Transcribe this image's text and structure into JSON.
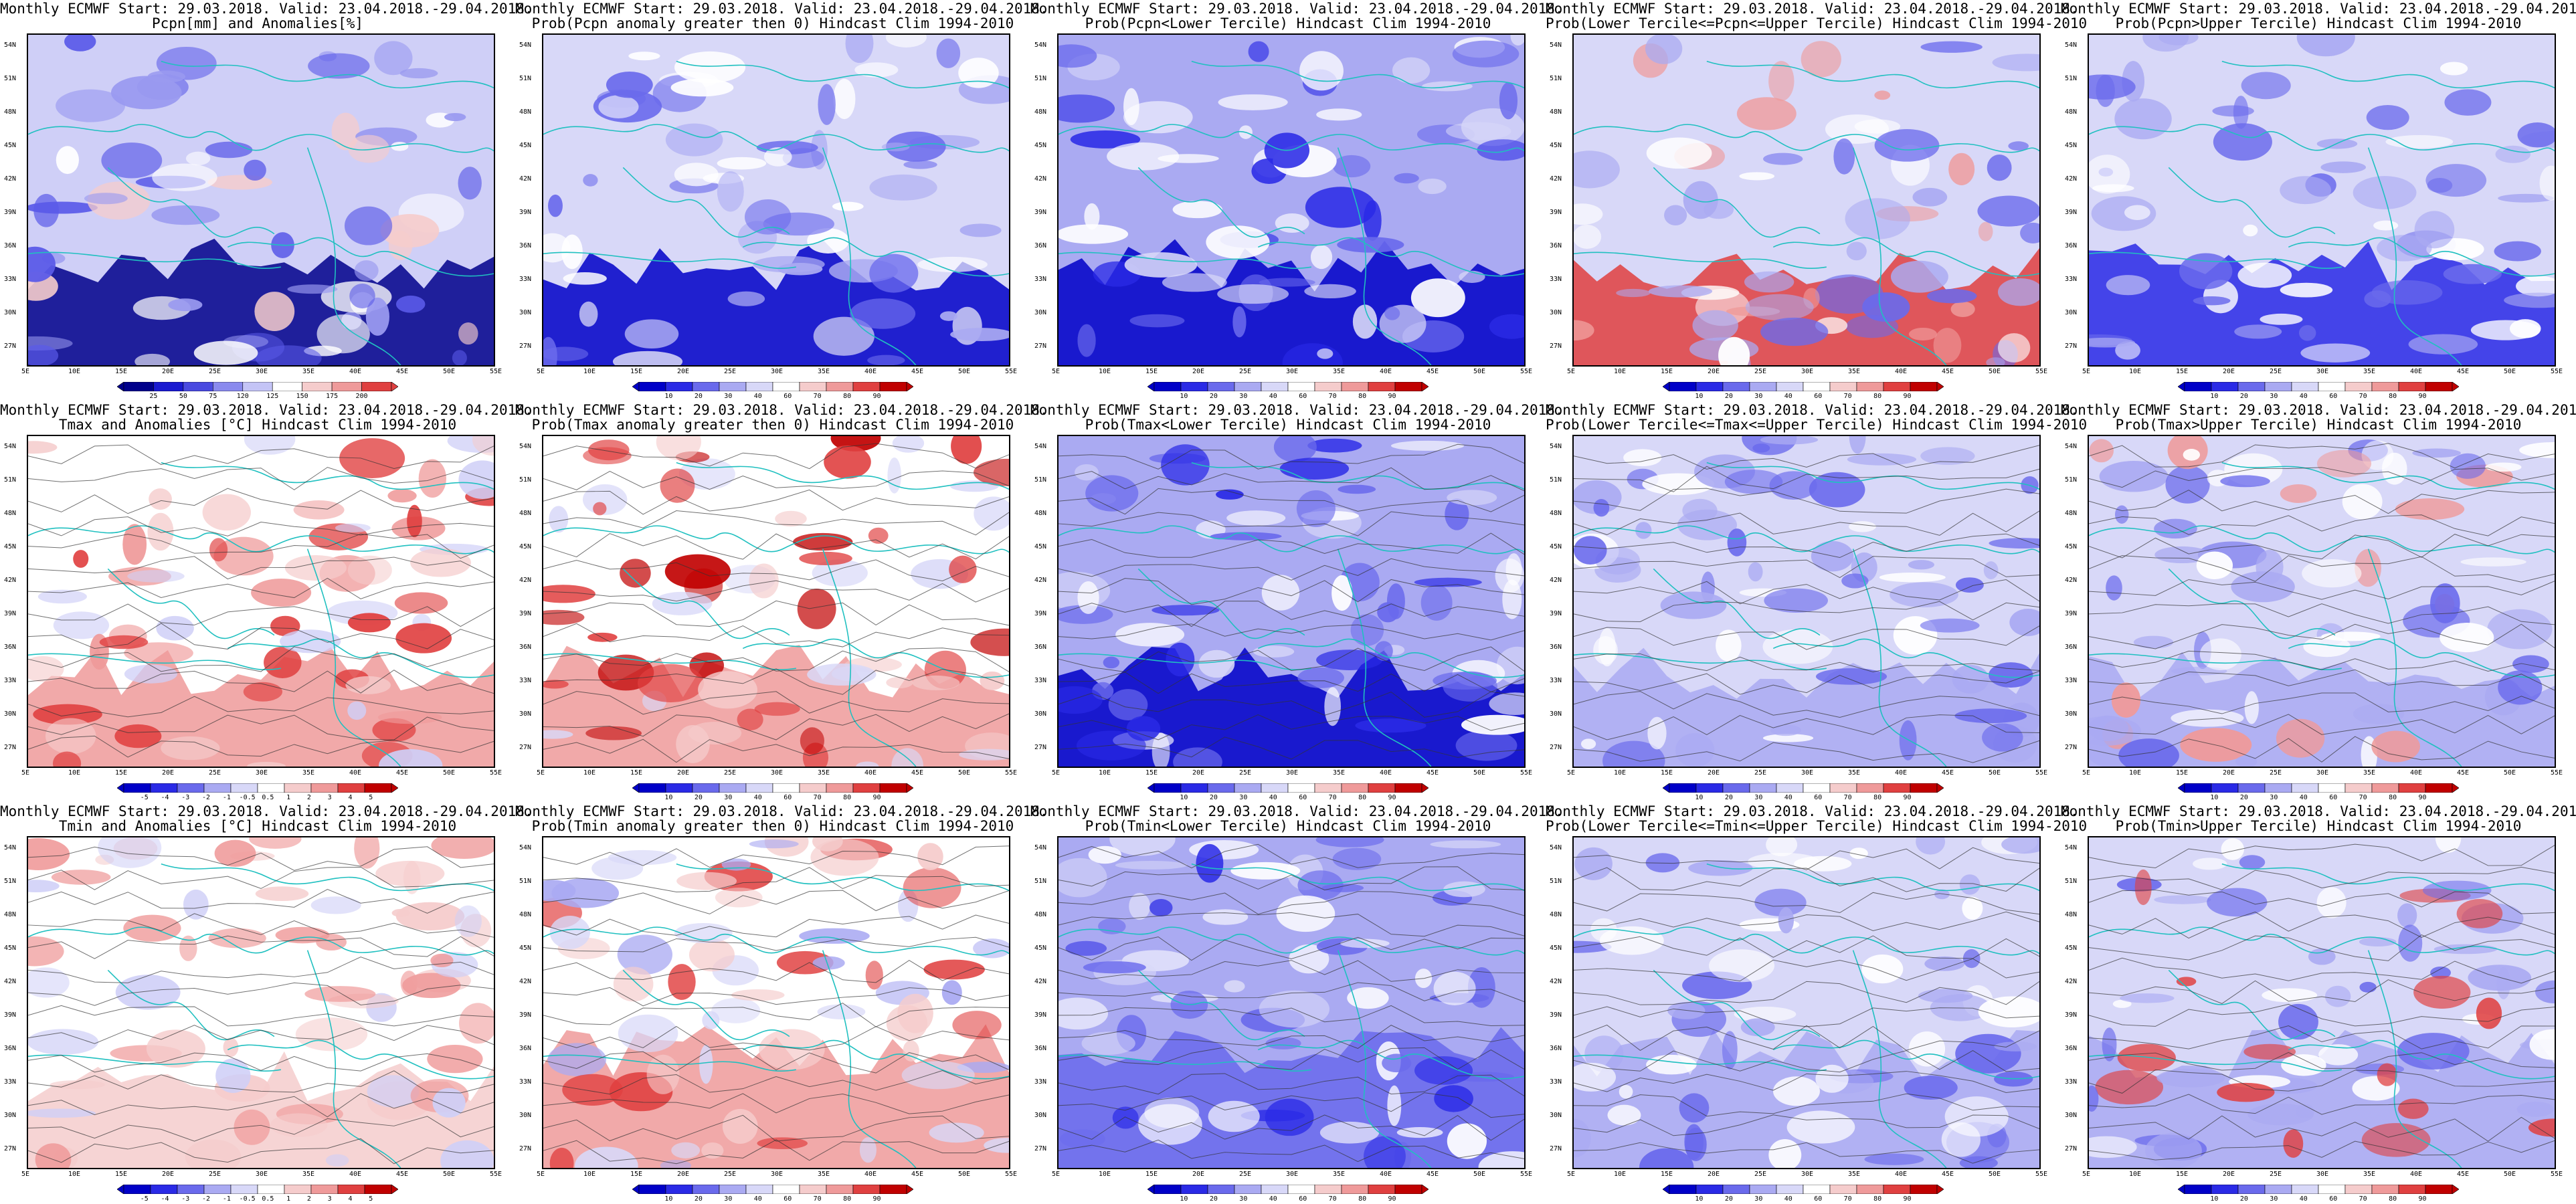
{
  "lat_labels": [
    "54N",
    "51N",
    "48N",
    "45N",
    "42N",
    "39N",
    "36N",
    "33N",
    "30N",
    "27N"
  ],
  "lon_labels": [
    "5E",
    "10E",
    "15E",
    "20E",
    "25E",
    "30E",
    "35E",
    "40E",
    "45E",
    "50E",
    "55E"
  ],
  "colors": {
    "blue_dark": "#00008b",
    "blue": "#2b2bd9",
    "blue_mid": "#5a5ae8",
    "blue_light": "#9a9af0",
    "blue_pale": "#cfcff7",
    "white": "#ffffff",
    "red_pale": "#f5cccc",
    "red_light": "#ef9a9a",
    "red": "#e04040",
    "red_dark": "#b00000",
    "coast": "#20c0c0",
    "contour": "#333333"
  },
  "panels": [
    {
      "title1": "Monthly ECMWF Start: 29.03.2018. Valid: 23.04.2018.-29.04.2018.",
      "title2": "Pcpn[mm] and Anomalies[%]",
      "bar": "anom",
      "ticks": [
        "25",
        "50",
        "75",
        "120",
        "125",
        "150",
        "175",
        "200"
      ],
      "palette": [
        "#00008b",
        "#1a1ad0",
        "#4a4ae0",
        "#8a8aee",
        "#c4c4f6",
        "#ffffff",
        "#f5cccc",
        "#ef9a9a",
        "#e04040"
      ]
    },
    {
      "title1": "Monthly ECMWF Start: 29.03.2018. Valid: 23.04.2018.-29.04.2018.",
      "title2": "Prob(Pcpn anomaly greater then 0) Hindcast Clim 1994-2010",
      "bar": "prob",
      "ticks": [
        "10",
        "20",
        "30",
        "40",
        "60",
        "70",
        "80",
        "90"
      ]
    },
    {
      "title1": "Monthly ECMWF Start: 29.03.2018. Valid: 23.04.2018.-29.04.2018.",
      "title2": "Prob(Pcpn<Lower Tercile) Hindcast Clim 1994-2010",
      "bar": "prob",
      "ticks": [
        "10",
        "20",
        "30",
        "40",
        "60",
        "70",
        "80",
        "90"
      ]
    },
    {
      "title1": "Monthly ECMWF Start: 29.03.2018. Valid: 23.04.2018.-29.04.2018.",
      "title2": "Prob(Lower Tercile<=Pcpn<=Upper Tercile) Hindcast Clim 1994-2010",
      "bar": "prob",
      "ticks": [
        "10",
        "20",
        "30",
        "40",
        "60",
        "70",
        "80",
        "90"
      ]
    },
    {
      "title1": "Monthly ECMWF Start: 29.03.2018. Valid: 23.04.2018.-29.04.2018.",
      "title2": "Prob(Pcpn>Upper Tercile) Hindcast Clim 1994-2010",
      "bar": "prob",
      "ticks": [
        "10",
        "20",
        "30",
        "40",
        "60",
        "70",
        "80",
        "90"
      ]
    },
    {
      "title1": "Monthly ECMWF Start: 29.03.2018. Valid: 23.04.2018.-29.04.2018.",
      "title2": "Tmax and Anomalies [°C] Hindcast Clim 1994-2010",
      "bar": "anom",
      "ticks": [
        "-5",
        "-4",
        "-3",
        "-2",
        "-1",
        "-0.5",
        "0.5",
        "1",
        "2",
        "3",
        "4",
        "5"
      ]
    },
    {
      "title1": "Monthly ECMWF Start: 29.03.2018. Valid: 23.04.2018.-29.04.2018.",
      "title2": "Prob(Tmax anomaly greater then 0) Hindcast Clim 1994-2010",
      "bar": "prob",
      "ticks": [
        "10",
        "20",
        "30",
        "40",
        "60",
        "70",
        "80",
        "90"
      ]
    },
    {
      "title1": "Monthly ECMWF Start: 29.03.2018. Valid: 23.04.2018.-29.04.2018.",
      "title2": "Prob(Tmax<Lower Tercile) Hindcast Clim 1994-2010",
      "bar": "prob",
      "ticks": [
        "10",
        "20",
        "30",
        "40",
        "60",
        "70",
        "80",
        "90"
      ]
    },
    {
      "title1": "Monthly ECMWF Start: 29.03.2018. Valid: 23.04.2018.-29.04.2018.",
      "title2": "Prob(Lower Tercile<=Tmax<=Upper Tercile) Hindcast Clim 1994-2010",
      "bar": "prob",
      "ticks": [
        "10",
        "20",
        "30",
        "40",
        "60",
        "70",
        "80",
        "90"
      ]
    },
    {
      "title1": "Monthly ECMWF Start: 29.03.2018. Valid: 23.04.2018.-29.04.2018.",
      "title2": "Prob(Tmax>Upper Tercile) Hindcast Clim 1994-2010",
      "bar": "prob",
      "ticks": [
        "10",
        "20",
        "30",
        "40",
        "60",
        "70",
        "80",
        "90"
      ]
    },
    {
      "title1": "Monthly ECMWF Start: 29.03.2018. Valid: 23.04.2018.-29.04.2018.",
      "title2": "Tmin and Anomalies [°C] Hindcast Clim 1994-2010",
      "bar": "anom",
      "ticks": [
        "-5",
        "-4",
        "-3",
        "-2",
        "-1",
        "-0.5",
        "0.5",
        "1",
        "2",
        "3",
        "4",
        "5"
      ]
    },
    {
      "title1": "Monthly ECMWF Start: 29.03.2018. Valid: 23.04.2018.-29.04.2018.",
      "title2": "Prob(Tmin anomaly greater then 0) Hindcast Clim 1994-2010",
      "bar": "prob",
      "ticks": [
        "10",
        "20",
        "30",
        "40",
        "60",
        "70",
        "80",
        "90"
      ]
    },
    {
      "title1": "Monthly ECMWF Start: 29.03.2018. Valid: 23.04.2018.-29.04.2018.",
      "title2": "Prob(Tmin<Lower Tercile) Hindcast Clim 1994-2010",
      "bar": "prob",
      "ticks": [
        "10",
        "20",
        "30",
        "40",
        "60",
        "70",
        "80",
        "90"
      ]
    },
    {
      "title1": "Monthly ECMWF Start: 29.03.2018. Valid: 23.04.2018.-29.04.2018.",
      "title2": "Prob(Lower Tercile<=Tmin<=Upper Tercile) Hindcast Clim 1994-2010",
      "bar": "prob",
      "ticks": [
        "10",
        "20",
        "30",
        "40",
        "60",
        "70",
        "80",
        "90"
      ]
    },
    {
      "title1": "Monthly ECMWF Start: 29.03.2018. Valid: 23.04.2018.-29.04.2018.",
      "title2": "Prob(Tmin>Upper Tercile) Hindcast Clim 1994-2010",
      "bar": "prob",
      "ticks": [
        "10",
        "20",
        "30",
        "40",
        "60",
        "70",
        "80",
        "90"
      ]
    }
  ],
  "prob_palette": [
    "#0000c8",
    "#2a2ae6",
    "#6a6aec",
    "#aaaaf2",
    "#d8d8f8",
    "#ffffff",
    "#f5cccc",
    "#ef9a9a",
    "#e04040",
    "#c00000"
  ]
}
